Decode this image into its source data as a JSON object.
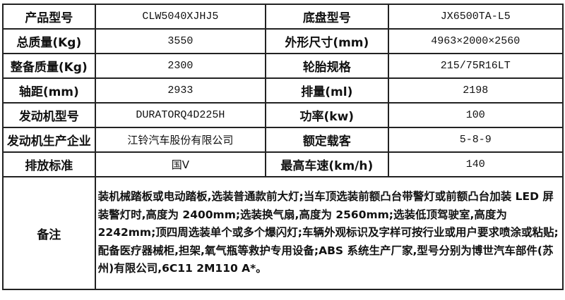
{
  "rows": [
    {
      "l1": "产品型号",
      "v1": "CLW5040XJHJ5",
      "l2": "底盘型号",
      "v2": "JX6500TA-L5"
    },
    {
      "l1": "总质量(Kg)",
      "v1": "3550",
      "l2": "外形尺寸(mm)",
      "v2": "4963×2000×2560"
    },
    {
      "l1": "整备质量(Kg)",
      "v1": "2300",
      "l2": "轮胎规格",
      "v2": "215/75R16LT"
    },
    {
      "l1": "轴距(mm)",
      "v1": "2933",
      "l2": "排量(ml)",
      "v2": "2198"
    },
    {
      "l1": "发动机型号",
      "v1": "DURATORQ4D225H",
      "l2": "功率(kw)",
      "v2": "100"
    },
    {
      "l1": "发动机生产企业",
      "v1": "江铃汽车股份有限公司",
      "l2": "额定载客",
      "v2": "5-8-9"
    },
    {
      "l1": "排放标准",
      "v1": "国Ⅴ",
      "l2": "最高车速(km/h)",
      "v2": "140"
    }
  ],
  "remarks": {
    "label": "备注",
    "text": "装机械踏板或电动踏板,选装普通款前大灯;当车顶选装前额凸台带警灯或前额凸台加装 LED 屏装警灯时,高度为 2400mm;选装换气扇,高度为 2560mm;选装低顶驾驶室,高度为 2242mm;顶四周选装单个或多个爆闪灯;车辆外观标识及字样可按行业或用户要求喷涂或粘贴;配备医疗器械柜,担架,氧气瓶等救护专用设备;ABS 系统生产厂家,型号分别为博世汽车部件(苏州)有限公司,6C11 2M110 A*。"
  }
}
